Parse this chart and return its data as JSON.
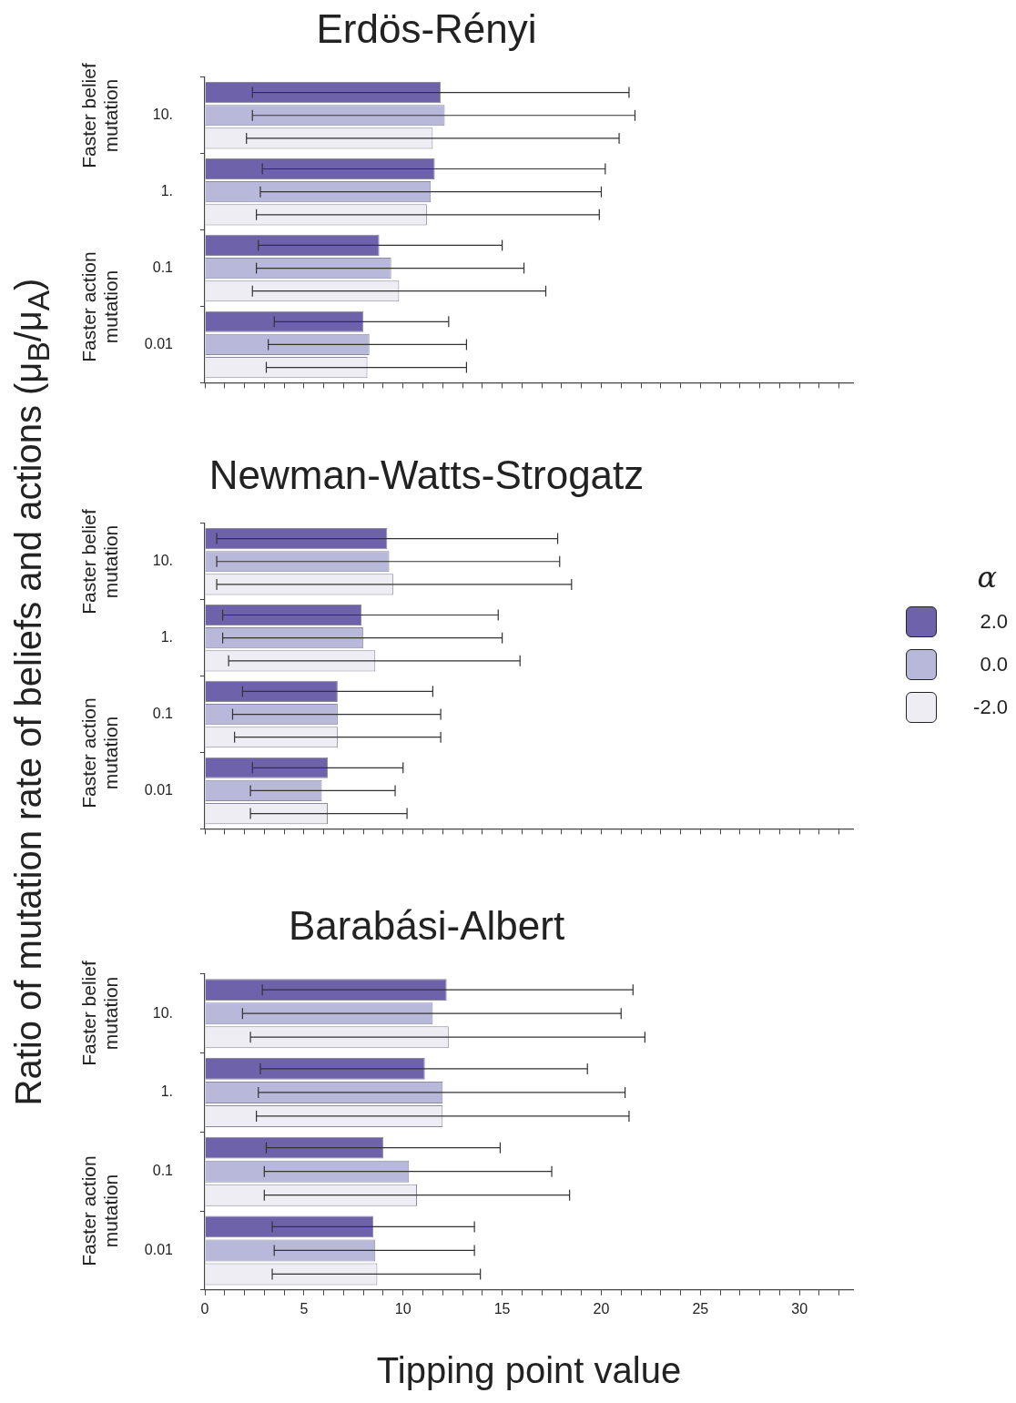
{
  "chart_data": [
    {
      "type": "bar",
      "orientation": "horizontal",
      "title": "Erdös-Rényi",
      "categories": [
        "10.",
        "1.",
        "0.1",
        "0.01"
      ],
      "xlim": [
        0,
        32.7
      ],
      "xticks": [
        0,
        {
          "value": 1,
          "label": null
        },
        {
          "value": 2,
          "label": null
        },
        {
          "value": 3,
          "label": null
        },
        {
          "value": 4,
          "label": null
        },
        5,
        {
          "value": 6,
          "label": null
        },
        {
          "value": 7,
          "label": null
        },
        {
          "value": 8,
          "label": null
        },
        {
          "value": 9,
          "label": null
        },
        10,
        {
          "value": 11,
          "label": null
        },
        {
          "value": 12,
          "label": null
        },
        {
          "value": 13,
          "label": null
        },
        {
          "value": 14,
          "label": null
        },
        15,
        {
          "value": 16,
          "label": null
        },
        {
          "value": 17,
          "label": null
        },
        {
          "value": 18,
          "label": null
        },
        {
          "value": 19,
          "label": null
        },
        20,
        {
          "value": 21,
          "label": null
        },
        {
          "value": 22,
          "label": null
        },
        {
          "value": 23,
          "label": null
        },
        {
          "value": 24,
          "label": null
        },
        25,
        {
          "value": 26,
          "label": null
        },
        {
          "value": 27,
          "label": null
        },
        {
          "value": 28,
          "label": null
        },
        {
          "value": 29,
          "label": null
        },
        30,
        {
          "value": 31,
          "label": null
        },
        {
          "value": 32,
          "label": null
        }
      ],
      "tick_labels": "y",
      "grid": false,
      "legend": false,
      "annotations": [
        "Faster belief mutation",
        "Faster action mutation"
      ],
      "series": [
        {
          "color": "#6e63ab",
          "values": [
            11.9,
            11.6,
            8.8,
            8.0
          ],
          "errors": [
            [
              2.4,
              21.4
            ],
            [
              2.9,
              20.2
            ],
            [
              2.7,
              15.0
            ],
            [
              3.5,
              12.3
            ]
          ]
        },
        {
          "color": "#b8b8db",
          "values": [
            12.1,
            11.4,
            9.4,
            8.3
          ],
          "errors": [
            [
              2.4,
              21.7
            ],
            [
              2.8,
              20.0
            ],
            [
              2.6,
              16.1
            ],
            [
              3.2,
              13.2
            ]
          ]
        },
        {
          "color": "#eeedf4",
          "values": [
            11.5,
            11.2,
            9.8,
            8.2
          ],
          "errors": [
            [
              2.1,
              20.9
            ],
            [
              2.6,
              19.9
            ],
            [
              2.4,
              17.2
            ],
            [
              3.1,
              13.2
            ]
          ]
        }
      ]
    },
    {
      "type": "bar",
      "orientation": "horizontal",
      "title": "Newman-Watts-Strogatz",
      "ylabel": "Ratio of mutation rate of beliefs and actions (μ$_{B}$/μ$_{A}$)",
      "legend_title": "α",
      "categories": [
        "10.",
        "1.",
        "0.1",
        "0.01"
      ],
      "xlim": [
        0,
        32.7
      ],
      "xticks": [
        0,
        {
          "value": 1,
          "label": null
        },
        {
          "value": 2,
          "label": null
        },
        {
          "value": 3,
          "label": null
        },
        {
          "value": 4,
          "label": null
        },
        5,
        {
          "value": 6,
          "label": null
        },
        {
          "value": 7,
          "label": null
        },
        {
          "value": 8,
          "label": null
        },
        {
          "value": 9,
          "label": null
        },
        10,
        {
          "value": 11,
          "label": null
        },
        {
          "value": 12,
          "label": null
        },
        {
          "value": 13,
          "label": null
        },
        {
          "value": 14,
          "label": null
        },
        15,
        {
          "value": 16,
          "label": null
        },
        {
          "value": 17,
          "label": null
        },
        {
          "value": 18,
          "label": null
        },
        {
          "value": 19,
          "label": null
        },
        20,
        {
          "value": 21,
          "label": null
        },
        {
          "value": 22,
          "label": null
        },
        {
          "value": 23,
          "label": null
        },
        {
          "value": 24,
          "label": null
        },
        25,
        {
          "value": 26,
          "label": null
        },
        {
          "value": 27,
          "label": null
        },
        {
          "value": 28,
          "label": null
        },
        {
          "value": 29,
          "label": null
        },
        30,
        {
          "value": 31,
          "label": null
        },
        {
          "value": 32,
          "label": null
        }
      ],
      "tick_labels": "y",
      "grid": false,
      "legend": "right",
      "annotations": [
        "Faster belief mutation",
        "Faster action mutation"
      ],
      "series": [
        {
          "name": "2.0",
          "color": "#6e63ab",
          "values": [
            9.2,
            7.9,
            6.7,
            6.2
          ],
          "errors": [
            [
              0.6,
              17.8
            ],
            [
              0.9,
              14.8
            ],
            [
              1.9,
              11.5
            ],
            [
              2.4,
              10.0
            ]
          ]
        },
        {
          "name": "0.0",
          "color": "#b8b8db",
          "values": [
            9.3,
            8.0,
            6.7,
            5.9
          ],
          "errors": [
            [
              0.6,
              17.9
            ],
            [
              0.9,
              15.0
            ],
            [
              1.4,
              11.9
            ],
            [
              2.3,
              9.6
            ]
          ]
        },
        {
          "name": "-2.0",
          "color": "#eeedf4",
          "values": [
            9.5,
            8.6,
            6.7,
            6.2
          ],
          "errors": [
            [
              0.6,
              18.5
            ],
            [
              1.2,
              15.9
            ],
            [
              1.5,
              11.9
            ],
            [
              2.3,
              10.2
            ]
          ]
        }
      ]
    },
    {
      "type": "bar",
      "orientation": "horizontal",
      "title": "Barabási-Albert",
      "xlabel": "Tipping point value",
      "categories": [
        "10.",
        "1.",
        "0.1",
        "0.01"
      ],
      "xlim": [
        0,
        32.7
      ],
      "xticks": [
        0,
        {
          "value": 1,
          "label": null
        },
        {
          "value": 2,
          "label": null
        },
        {
          "value": 3,
          "label": null
        },
        {
          "value": 4,
          "label": null
        },
        5,
        {
          "value": 6,
          "label": null
        },
        {
          "value": 7,
          "label": null
        },
        {
          "value": 8,
          "label": null
        },
        {
          "value": 9,
          "label": null
        },
        10,
        {
          "value": 11,
          "label": null
        },
        {
          "value": 12,
          "label": null
        },
        {
          "value": 13,
          "label": null
        },
        {
          "value": 14,
          "label": null
        },
        15,
        {
          "value": 16,
          "label": null
        },
        {
          "value": 17,
          "label": null
        },
        {
          "value": 18,
          "label": null
        },
        {
          "value": 19,
          "label": null
        },
        20,
        {
          "value": 21,
          "label": null
        },
        {
          "value": 22,
          "label": null
        },
        {
          "value": 23,
          "label": null
        },
        {
          "value": 24,
          "label": null
        },
        25,
        {
          "value": 26,
          "label": null
        },
        {
          "value": 27,
          "label": null
        },
        {
          "value": 28,
          "label": null
        },
        {
          "value": 29,
          "label": null
        },
        30,
        {
          "value": 31,
          "label": null
        },
        {
          "value": 32,
          "label": null
        }
      ],
      "grid": false,
      "legend": false,
      "annotations": [
        "Faster belief mutation",
        "Faster action mutation"
      ],
      "series": [
        {
          "color": "#6e63ab",
          "values": [
            12.2,
            11.1,
            9.0,
            8.5
          ],
          "errors": [
            [
              2.9,
              21.6
            ],
            [
              2.8,
              19.3
            ],
            [
              3.1,
              14.9
            ],
            [
              3.4,
              13.6
            ]
          ]
        },
        {
          "color": "#b8b8db",
          "values": [
            11.5,
            12.0,
            10.3,
            8.6
          ],
          "errors": [
            [
              1.9,
              21.0
            ],
            [
              2.7,
              21.2
            ],
            [
              3.0,
              17.5
            ],
            [
              3.5,
              13.6
            ]
          ]
        },
        {
          "color": "#eeedf4",
          "values": [
            12.3,
            12.0,
            10.7,
            8.7
          ],
          "errors": [
            [
              2.3,
              22.2
            ],
            [
              2.6,
              21.4
            ],
            [
              3.0,
              18.4
            ],
            [
              3.4,
              13.9
            ]
          ]
        }
      ]
    }
  ]
}
